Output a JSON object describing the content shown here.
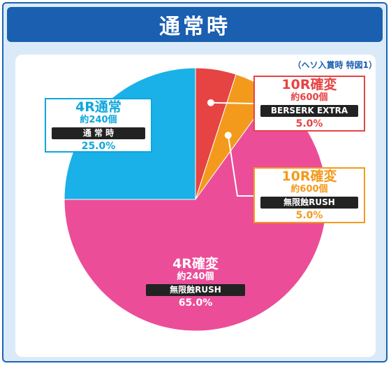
{
  "header": {
    "title": "通常時"
  },
  "subtitle": "（ヘソ入賞時 特図1）",
  "colors": {
    "blue": "#1ab0e8",
    "pink": "#ec4d98",
    "orange": "#f39a1c",
    "red": "#e64343"
  },
  "chart_data": {
    "type": "pie",
    "title": "通常時",
    "slices": [
      {
        "name": "10R確変",
        "count": "約600個",
        "mode": "BERSERK EXTRA",
        "pct_label": "5.0%",
        "value": 5.0,
        "color": "#e64343"
      },
      {
        "name": "10R確変",
        "count": "約600個",
        "mode": "無限蝕RUSH",
        "pct_label": "5.0%",
        "value": 5.0,
        "color": "#f39a1c"
      },
      {
        "name": "4R確変",
        "count": "約240個",
        "mode": "無限蝕RUSH",
        "pct_label": "65.0%",
        "value": 65.0,
        "color": "#ec4d98"
      },
      {
        "name": "4R通常",
        "count": "約240個",
        "mode": "通 常 時",
        "pct_label": "25.0%",
        "value": 25.0,
        "color": "#1ab0e8"
      }
    ]
  }
}
